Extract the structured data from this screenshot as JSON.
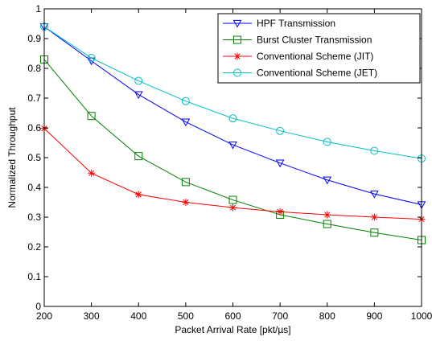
{
  "chart_data": {
    "type": "line",
    "title": "",
    "xlabel": "Packet Arrival Rate [pkt/µs]",
    "ylabel": "Normalized Throughput",
    "x": [
      200,
      300,
      400,
      500,
      600,
      700,
      800,
      900,
      1000
    ],
    "xlim": [
      200,
      1000
    ],
    "ylim": [
      0,
      1
    ],
    "xticks": [
      200,
      300,
      400,
      500,
      600,
      700,
      800,
      900,
      1000
    ],
    "yticks": [
      0,
      0.1,
      0.2,
      0.3,
      0.4,
      0.5,
      0.6,
      0.7,
      0.8,
      0.9,
      1
    ],
    "grid": false,
    "legend_position": "top-right",
    "series": [
      {
        "name": "HPF Transmission",
        "color": "#0000ff",
        "marker": "triangle-down",
        "values": [
          0.94,
          0.825,
          0.712,
          0.62,
          0.543,
          0.482,
          0.425,
          0.378,
          0.342
        ]
      },
      {
        "name": "Burst Cluster Transmission",
        "color": "#008000",
        "marker": "square",
        "values": [
          0.83,
          0.64,
          0.505,
          0.418,
          0.358,
          0.308,
          0.277,
          0.248,
          0.223
        ]
      },
      {
        "name": "Conventional Scheme (JIT)",
        "color": "#ff0000",
        "marker": "asterisk",
        "values": [
          0.598,
          0.448,
          0.376,
          0.35,
          0.332,
          0.318,
          0.308,
          0.3,
          0.293
        ]
      },
      {
        "name": "Conventional Scheme (JET)",
        "color": "#00bfbf",
        "marker": "circle",
        "values": [
          0.94,
          0.835,
          0.758,
          0.69,
          0.632,
          0.59,
          0.553,
          0.523,
          0.497
        ]
      }
    ]
  }
}
